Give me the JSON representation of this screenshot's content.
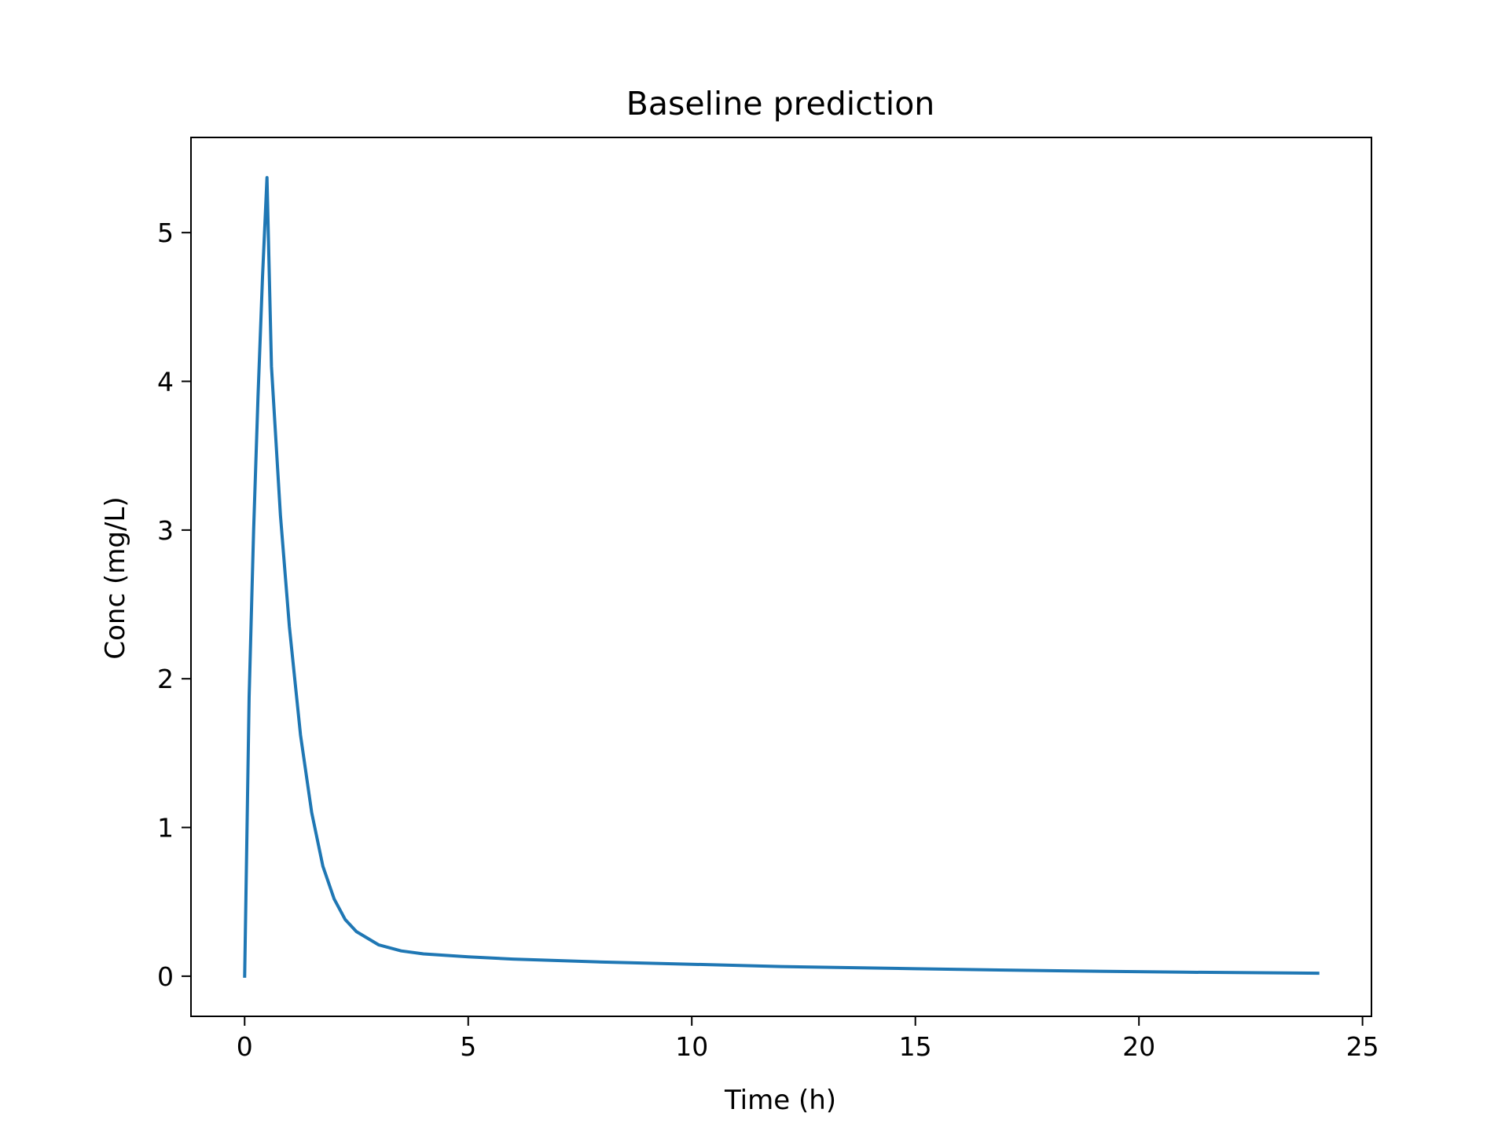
{
  "chart_data": {
    "type": "line",
    "title": "Baseline prediction",
    "xlabel": "Time (h)",
    "ylabel": "Conc (mg/L)",
    "xlim": [
      -1.2,
      25.2
    ],
    "ylim": [
      -0.27,
      5.64
    ],
    "xticks": [
      0,
      5,
      10,
      15,
      20,
      25
    ],
    "yticks": [
      0,
      1,
      2,
      3,
      4,
      5
    ],
    "xtick_labels": [
      "0",
      "5",
      "10",
      "15",
      "20",
      "25"
    ],
    "ytick_labels": [
      "0",
      "1",
      "2",
      "3",
      "4",
      "5"
    ],
    "grid": false,
    "legend": "none",
    "series": [
      {
        "color": "#1f77b4",
        "x": [
          0,
          0.1,
          0.2,
          0.3,
          0.4,
          0.5,
          0.6,
          0.8,
          1.0,
          1.25,
          1.5,
          1.75,
          2.0,
          2.25,
          2.5,
          3.0,
          3.5,
          4.0,
          5.0,
          6.0,
          8.0,
          10.0,
          12.0,
          15.0,
          18.0,
          21.0,
          24.0
        ],
        "y": [
          0,
          1.88,
          3.0,
          3.9,
          4.7,
          5.37,
          4.1,
          3.1,
          2.35,
          1.62,
          1.1,
          0.74,
          0.52,
          0.38,
          0.3,
          0.21,
          0.17,
          0.15,
          0.13,
          0.115,
          0.095,
          0.08,
          0.065,
          0.05,
          0.037,
          0.027,
          0.02
        ]
      }
    ]
  }
}
